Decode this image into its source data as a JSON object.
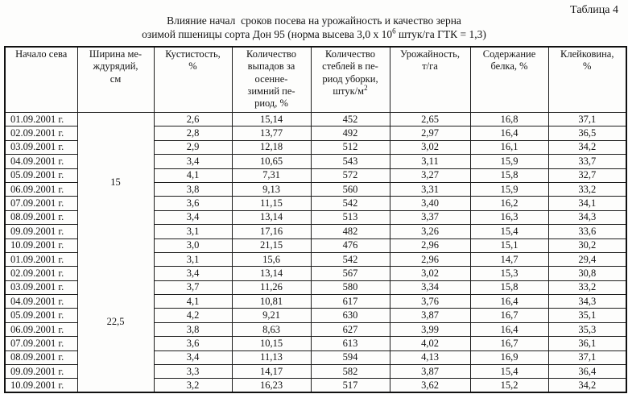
{
  "page": {
    "table_label": "Таблица 4",
    "title_line1": "Влияние начал  сроков посева на урожайность и качество зерна",
    "title_line2_prefix": "озимой пшеницы сорта Дон 95 (норма высева 3,0 х 10",
    "title_line2_sup": "6",
    "title_line2_suffix": " штук/га ГТК = 1,3)"
  },
  "table": {
    "headers": [
      {
        "text": "Начало сева"
      },
      {
        "text": "Ширина ме-\nждурядий,\nсм"
      },
      {
        "text": "Кустистость,\n%"
      },
      {
        "text": "Количество\nвыпадов за\nосенне-\nзимний пе-\nриод, %"
      },
      {
        "text": "Количество\nстеблей в пе-\nриод уборки,\nштук/м",
        "sup": "2"
      },
      {
        "text": "Урожайность,\nт/га"
      },
      {
        "text": "Содержание\nбелка, %"
      },
      {
        "text": "Клейковина,\n%"
      }
    ],
    "value_keys": [
      "tillering",
      "winter-loss",
      "stems-at-harvest",
      "yield",
      "protein",
      "gluten"
    ],
    "groups": [
      {
        "width_cm": "15",
        "rows": [
          {
            "date": "01.09.2001 г.",
            "values": [
              "2,6",
              "15,14",
              "452",
              "2,65",
              "16,8",
              "37,1"
            ]
          },
          {
            "date": "02.09.2001 г.",
            "values": [
              "2,8",
              "13,77",
              "492",
              "2,97",
              "16,4",
              "36,5"
            ]
          },
          {
            "date": "03.09.2001 г.",
            "values": [
              "2,9",
              "12,18",
              "512",
              "3,02",
              "16,1",
              "34,2"
            ]
          },
          {
            "date": "04.09.2001 г.",
            "values": [
              "3,4",
              "10,65",
              "543",
              "3,11",
              "15,9",
              "33,7"
            ]
          },
          {
            "date": "05.09.2001 г.",
            "values": [
              "4,1",
              "7,31",
              "572",
              "3,27",
              "15,8",
              "32,7"
            ]
          },
          {
            "date": "06.09.2001 г.",
            "values": [
              "3,8",
              "9,13",
              "560",
              "3,31",
              "15,9",
              "33,2"
            ]
          },
          {
            "date": "07.09.2001 г.",
            "values": [
              "3,6",
              "11,15",
              "542",
              "3,40",
              "16,2",
              "34,1"
            ]
          },
          {
            "date": "08.09.2001 г.",
            "values": [
              "3,4",
              "13,14",
              "513",
              "3,37",
              "16,3",
              "34,3"
            ]
          },
          {
            "date": "09.09.2001 г.",
            "values": [
              "3,1",
              "17,16",
              "482",
              "3,26",
              "15,4",
              "33,6"
            ]
          },
          {
            "date": "10.09.2001 г.",
            "values": [
              "3,0",
              "21,15",
              "476",
              "2,96",
              "15,1",
              "30,2"
            ]
          }
        ]
      },
      {
        "width_cm": "22,5",
        "rows": [
          {
            "date": "01.09.2001 г.",
            "values": [
              "3,1",
              "15,6",
              "542",
              "2,96",
              "14,7",
              "29,4"
            ]
          },
          {
            "date": "02.09.2001 г.",
            "values": [
              "3,4",
              "13,14",
              "567",
              "3,02",
              "15,3",
              "30,8"
            ]
          },
          {
            "date": "03.09.2001 г.",
            "values": [
              "3,7",
              "11,26",
              "580",
              "3,34",
              "15,8",
              "33,2"
            ]
          },
          {
            "date": "04.09.2001 г.",
            "values": [
              "4,1",
              "10,81",
              "617",
              "3,76",
              "16,4",
              "34,3"
            ]
          },
          {
            "date": "05.09.2001 г.",
            "values": [
              "4,2",
              "9,21",
              "630",
              "3,87",
              "16,7",
              "35,1"
            ]
          },
          {
            "date": "06.09.2001 г.",
            "values": [
              "3,8",
              "8,63",
              "627",
              "3,99",
              "16,4",
              "35,3"
            ]
          },
          {
            "date": "07.09.2001 г.",
            "values": [
              "3,6",
              "10,15",
              "613",
              "4,02",
              "16,7",
              "36,1"
            ]
          },
          {
            "date": "08.09.2001 г.",
            "values": [
              "3,4",
              "11,13",
              "594",
              "4,13",
              "16,9",
              "37,1"
            ]
          },
          {
            "date": "09.09.2001 г.",
            "values": [
              "3,3",
              "14,17",
              "582",
              "3,87",
              "15,4",
              "36,4"
            ]
          },
          {
            "date": "10.09.2001 г.",
            "values": [
              "3,2",
              "16,23",
              "517",
              "3,62",
              "15,2",
              "34,2"
            ]
          }
        ]
      }
    ]
  }
}
